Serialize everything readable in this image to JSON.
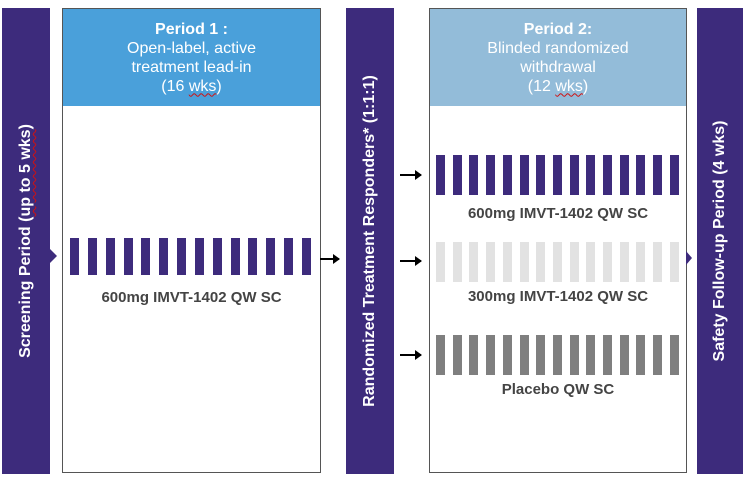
{
  "screening": {
    "label": "Screening Period (",
    "label_ul": "up to 5 wks",
    "label_end": ")"
  },
  "randomized": {
    "label": "Randomized Treatment Responders* (1:1:1)"
  },
  "safety": {
    "label": "Safety Follow-up Period (4 wks)"
  },
  "period1": {
    "title": "Period 1 :",
    "line1": "Open-label, active",
    "line2": "treatment lead-in",
    "line3_pre": "(16 ",
    "line3_ul": "wks",
    "line3_post": ")",
    "arm_label": "600mg IMVT-1402 QW SC",
    "arm_stripes": 14
  },
  "period2": {
    "title": "Period 2:",
    "line1": "Blinded randomized",
    "line2": "withdrawal",
    "line3_pre": "(12 ",
    "line3_ul": "wks",
    "line3_post": ")",
    "arms": [
      {
        "label": "600mg IMVT-1402 QW SC",
        "color": "#3d2b7c",
        "stripes": 15
      },
      {
        "label": "300mg IMVT-1402 QW SC",
        "color": "#e2e2e2",
        "stripes": 15
      },
      {
        "label": "Placebo QW SC",
        "color": "#7f7f7f",
        "stripes": 15
      }
    ]
  },
  "colors": {
    "purple": "#3d2b7c",
    "period1_header": "#4aa0da",
    "period2_header": "#93bcd9"
  }
}
